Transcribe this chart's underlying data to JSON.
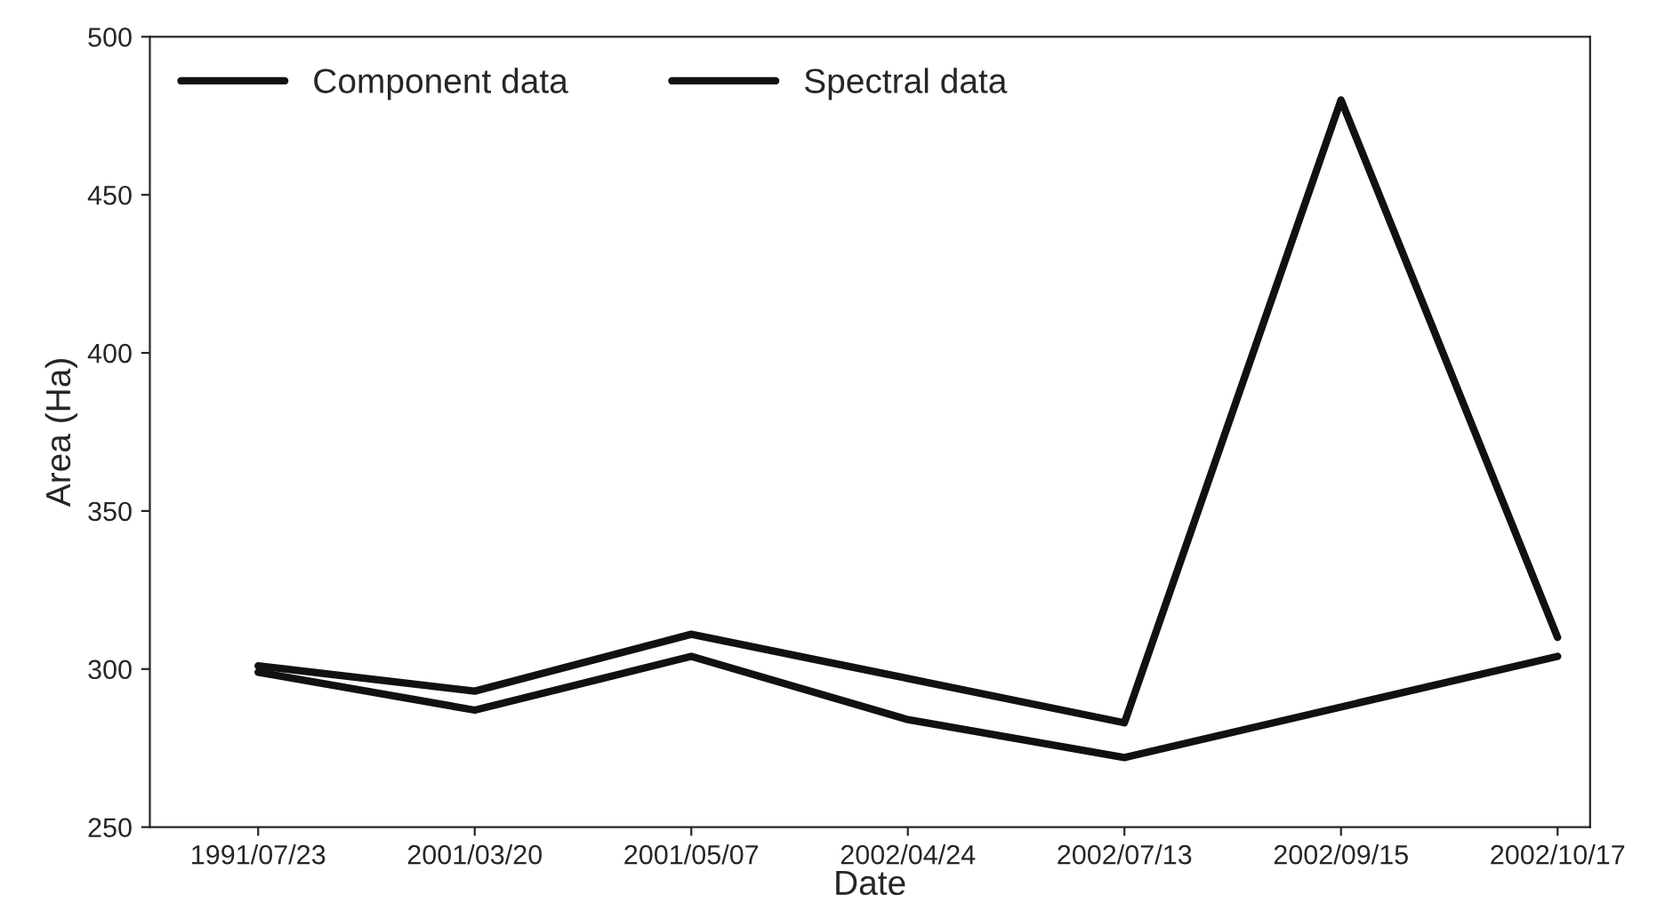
{
  "chart_data": {
    "type": "line",
    "xlabel": "Date",
    "ylabel": "Area (Ha)",
    "categories": [
      "1991/07/23",
      "2001/03/20",
      "2001/05/07",
      "2002/04/24",
      "2002/07/13",
      "2002/09/15",
      "2002/10/17"
    ],
    "series": [
      {
        "name": "Component data",
        "color": "#111111",
        "values": [
          301,
          293,
          311,
          297,
          283,
          480,
          310
        ]
      },
      {
        "name": "Spectral data",
        "color": "#111111",
        "values": [
          299,
          287,
          304,
          284,
          272,
          288,
          304
        ]
      }
    ],
    "ylim": [
      250,
      500
    ],
    "yticks": [
      250,
      300,
      350,
      400,
      450,
      500
    ],
    "grid": false,
    "legend": "top left",
    "marker": "none",
    "line_style": "solid"
  }
}
